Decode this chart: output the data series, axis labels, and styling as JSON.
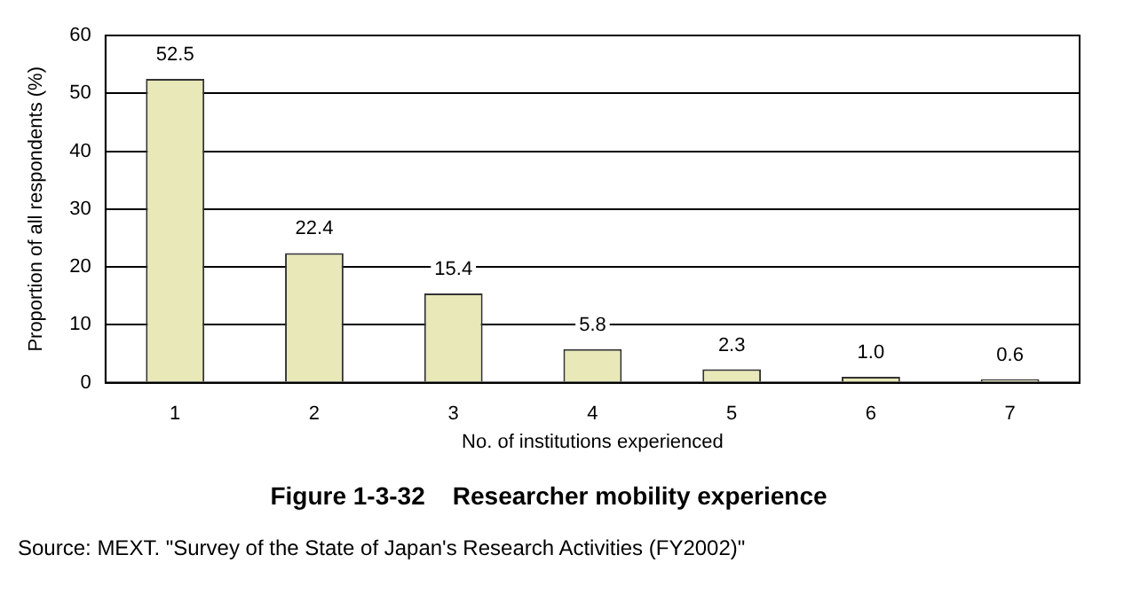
{
  "chart_data": {
    "type": "bar",
    "title": "Figure 1-3-32    Researcher mobility experience",
    "xlabel": "No. of institutions experienced",
    "ylabel": "Proportion of all respondents (%)",
    "categories": [
      "1",
      "2",
      "3",
      "4",
      "5",
      "6",
      "7"
    ],
    "values": [
      52.5,
      22.4,
      15.4,
      5.8,
      2.3,
      1.0,
      0.6
    ],
    "value_labels": [
      "52.5",
      "22.4",
      "15.4",
      "5.8",
      "2.3",
      "1.0",
      "0.6"
    ],
    "color": "#e8e8b8",
    "ylim": [
      0,
      60
    ],
    "yticks": [
      0,
      10,
      20,
      30,
      40,
      50,
      60
    ],
    "grid": "y",
    "legend": false,
    "annotations": [
      "Source: MEXT. \"Survey of the State of Japan's Research Activities (FY2002)\""
    ]
  }
}
